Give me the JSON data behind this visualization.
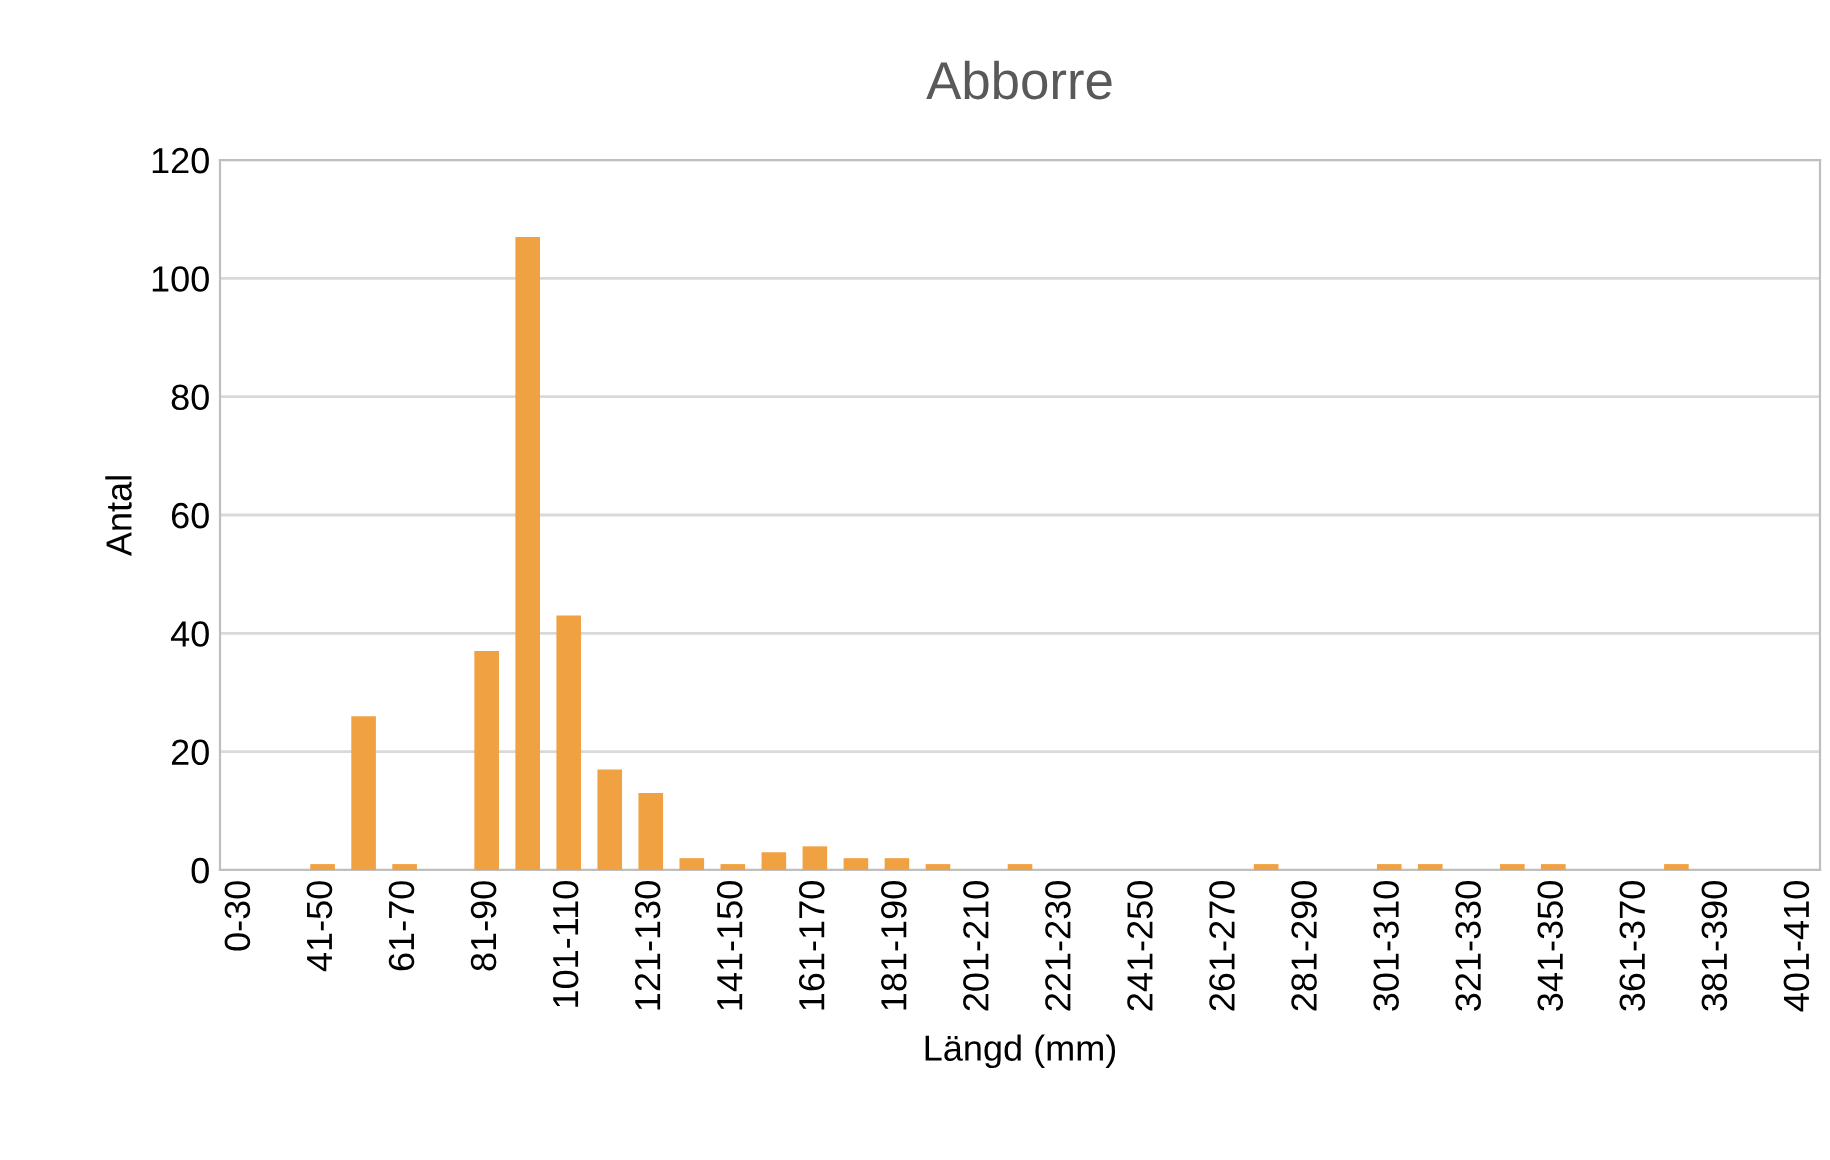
{
  "chart_data": {
    "type": "bar",
    "title": "Abborre",
    "xlabel": "Längd (mm)",
    "ylabel": "Antal",
    "categories": [
      "0-30",
      null,
      "41-50",
      null,
      "61-70",
      null,
      "81-90",
      null,
      "101-110",
      null,
      "121-130",
      null,
      "141-150",
      null,
      "161-170",
      null,
      "181-190",
      null,
      "201-210",
      null,
      "221-230",
      null,
      "241-250",
      null,
      "261-270",
      null,
      "281-290",
      null,
      "301-310",
      null,
      "321-330",
      null,
      "341-350",
      null,
      "361-370",
      null,
      "381-390",
      null,
      "401-410"
    ],
    "values": [
      0,
      0,
      1,
      26,
      1,
      0,
      37,
      107,
      43,
      17,
      13,
      2,
      1,
      3,
      4,
      2,
      2,
      1,
      0,
      1,
      0,
      0,
      0,
      0,
      0,
      1,
      0,
      0,
      1,
      1,
      0,
      1,
      1,
      0,
      0,
      1,
      0,
      0,
      0
    ],
    "color": "#f0a142",
    "ylim": [
      0,
      120
    ],
    "yticks": [
      0,
      20,
      40,
      60,
      80,
      100,
      120
    ],
    "grid": "y"
  }
}
